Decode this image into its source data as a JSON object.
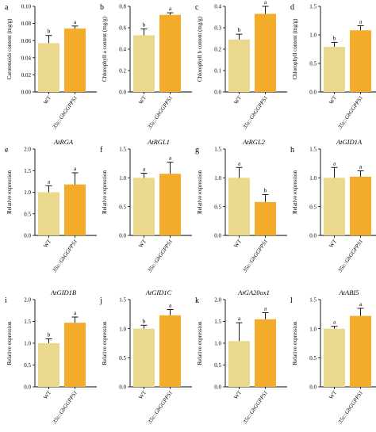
{
  "colors": {
    "wt": "#EAD98C",
    "transgenic": "#F2AC2A",
    "axis": "#000000"
  },
  "chart_data": [
    {
      "panel": "a",
      "type": "bar",
      "title": "",
      "ylabel": "Carotenoids content (mg/g)",
      "categories": [
        "WT",
        "35s::GbGGPPS1"
      ],
      "values": [
        0.057,
        0.074
      ],
      "errors": [
        0.009,
        0.003
      ],
      "letters": [
        "b",
        "a"
      ],
      "ylim": [
        0,
        0.1
      ],
      "ticks": [
        "0.00",
        "0.02",
        "0.04",
        "0.06",
        "0.08",
        "0.10"
      ],
      "tick_values": [
        0,
        0.02,
        0.04,
        0.06,
        0.08,
        0.1
      ]
    },
    {
      "panel": "b",
      "type": "bar",
      "title": "",
      "ylabel": "Chlorophyll a content (mg/g)",
      "categories": [
        "WT",
        "35s::GbGGPPS1"
      ],
      "values": [
        0.53,
        0.72
      ],
      "errors": [
        0.06,
        0.02
      ],
      "letters": [
        "b",
        "a"
      ],
      "ylim": [
        0,
        0.8
      ],
      "ticks": [
        "0.0",
        "0.2",
        "0.4",
        "0.6",
        "0.8"
      ],
      "tick_values": [
        0,
        0.2,
        0.4,
        0.6,
        0.8
      ]
    },
    {
      "panel": "c",
      "type": "bar",
      "title": "",
      "ylabel": "Chlorophyll b content (mg/g)",
      "categories": [
        "WT",
        "35s::GbGGPPS1"
      ],
      "values": [
        0.245,
        0.365
      ],
      "errors": [
        0.025,
        0.035
      ],
      "letters": [
        "b",
        "a"
      ],
      "ylim": [
        0,
        0.4
      ],
      "ticks": [
        "0.0",
        "0.1",
        "0.2",
        "0.3",
        "0.4"
      ],
      "tick_values": [
        0,
        0.1,
        0.2,
        0.3,
        0.4
      ]
    },
    {
      "panel": "d",
      "type": "bar",
      "title": "",
      "ylabel": "Chlorophyll content (mg/g)",
      "categories": [
        "WT",
        "35s::GbGGPPS1"
      ],
      "values": [
        0.79,
        1.08
      ],
      "errors": [
        0.08,
        0.08
      ],
      "letters": [
        "b",
        "a"
      ],
      "ylim": [
        0,
        1.5
      ],
      "ticks": [
        "0.0",
        "0.5",
        "1.0",
        "1.5"
      ],
      "tick_values": [
        0,
        0.5,
        1.0,
        1.5
      ]
    },
    {
      "panel": "e",
      "type": "bar",
      "title": "AtRGA",
      "ylabel": "Relative expression",
      "categories": [
        "WT",
        "35s::GbGGPPS1"
      ],
      "values": [
        1.0,
        1.18
      ],
      "errors": [
        0.15,
        0.27
      ],
      "letters": [
        "a",
        "a"
      ],
      "ylim": [
        0,
        2.0
      ],
      "ticks": [
        "0.0",
        "0.5",
        "1.0",
        "1.5",
        "2.0"
      ],
      "tick_values": [
        0,
        0.5,
        1.0,
        1.5,
        2.0
      ]
    },
    {
      "panel": "f",
      "type": "bar",
      "title": "AtRGL1",
      "ylabel": "Relative expression",
      "categories": [
        "WT",
        "35s::GbGGPPS1"
      ],
      "values": [
        1.0,
        1.07
      ],
      "errors": [
        0.08,
        0.2
      ],
      "letters": [
        "a",
        "a"
      ],
      "ylim": [
        0,
        1.5
      ],
      "ticks": [
        "0.0",
        "0.5",
        "1.0",
        "1.5"
      ],
      "tick_values": [
        0,
        0.5,
        1.0,
        1.5
      ]
    },
    {
      "panel": "g",
      "type": "bar",
      "title": "AtRGL2",
      "ylabel": "Relative expression",
      "categories": [
        "WT",
        "35s::GbGGPPS1"
      ],
      "values": [
        1.0,
        0.58
      ],
      "errors": [
        0.18,
        0.13
      ],
      "letters": [
        "a",
        "b"
      ],
      "ylim": [
        0,
        1.5
      ],
      "ticks": [
        "0.0",
        "0.5",
        "1.0",
        "1.5"
      ],
      "tick_values": [
        0,
        0.5,
        1.0,
        1.5
      ]
    },
    {
      "panel": "h",
      "type": "bar",
      "title": "AtGID1A",
      "ylabel": "Relative expression",
      "categories": [
        "WT",
        "35s::GbGGPPS1"
      ],
      "values": [
        1.0,
        1.02
      ],
      "errors": [
        0.18,
        0.1
      ],
      "letters": [
        "a",
        "a"
      ],
      "ylim": [
        0,
        1.5
      ],
      "ticks": [
        "0.0",
        "0.5",
        "1.0",
        "1.5"
      ],
      "tick_values": [
        0,
        0.5,
        1.0,
        1.5
      ]
    },
    {
      "panel": "i",
      "type": "bar",
      "title": "AtGID1B",
      "ylabel": "Relative expression",
      "categories": [
        "WT",
        "35s::GbGGPPS1"
      ],
      "values": [
        1.0,
        1.47
      ],
      "errors": [
        0.1,
        0.13
      ],
      "letters": [
        "b",
        "a"
      ],
      "ylim": [
        0,
        2.0
      ],
      "ticks": [
        "0.0",
        "0.5",
        "1.0",
        "1.5",
        "2.0"
      ],
      "tick_values": [
        0,
        0.5,
        1.0,
        1.5,
        2.0
      ]
    },
    {
      "panel": "j",
      "type": "bar",
      "title": "AtGID1C",
      "ylabel": "Relative expression",
      "categories": [
        "WT",
        "35s::GbGGPPS1"
      ],
      "values": [
        1.0,
        1.23
      ],
      "errors": [
        0.06,
        0.1
      ],
      "letters": [
        "b",
        "a"
      ],
      "ylim": [
        0,
        1.5
      ],
      "ticks": [
        "0.0",
        "0.5",
        "1.0",
        "1.5"
      ],
      "tick_values": [
        0,
        0.5,
        1.0,
        1.5
      ]
    },
    {
      "panel": "k",
      "type": "bar",
      "title": "AtGA20ox1",
      "ylabel": "Relative expression",
      "categories": [
        "WT",
        "35s::GbGGPPS1"
      ],
      "values": [
        1.05,
        1.55
      ],
      "errors": [
        0.42,
        0.15
      ],
      "letters": [
        "a",
        "a"
      ],
      "ylim": [
        0,
        2.0
      ],
      "ticks": [
        "0.0",
        "0.5",
        "1.0",
        "1.5",
        "2.0"
      ],
      "tick_values": [
        0,
        0.5,
        1.0,
        1.5,
        2.0
      ]
    },
    {
      "panel": "l",
      "type": "bar",
      "title": "AtABI5",
      "ylabel": "Relative expression",
      "categories": [
        "WT",
        "35s::GbGGPPS1"
      ],
      "values": [
        1.0,
        1.22
      ],
      "errors": [
        0.04,
        0.13
      ],
      "letters": [
        "a",
        "a"
      ],
      "ylim": [
        0,
        1.5
      ],
      "ticks": [
        "0.0",
        "0.5",
        "1.0",
        "1.5"
      ],
      "tick_values": [
        0,
        0.5,
        1.0,
        1.5
      ]
    }
  ]
}
